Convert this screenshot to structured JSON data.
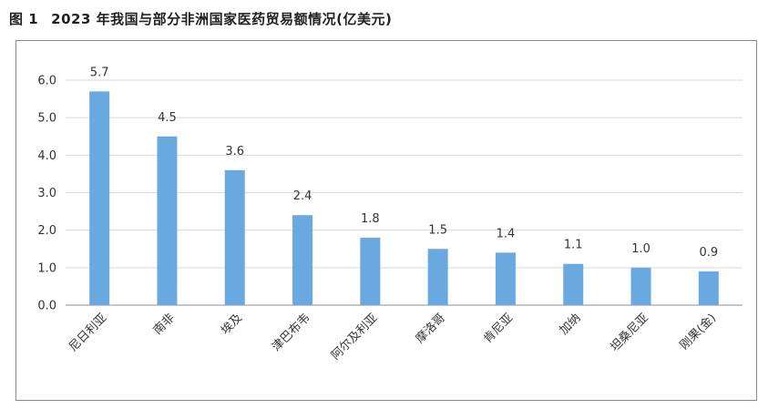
{
  "figure": {
    "number": "图 1",
    "title": "2023 年我国与部分非洲国家医药贸易额情况(亿美元)"
  },
  "chart_data": {
    "type": "bar",
    "title": "2023 年我国与部分非洲国家医药贸易额情况(亿美元)",
    "unit": "亿美元",
    "categories": [
      "尼日利亚",
      "南非",
      "埃及",
      "津巴布韦",
      "阿尔及利亚",
      "摩洛哥",
      "肯尼亚",
      "加纳",
      "坦桑尼亚",
      "刚果(金)"
    ],
    "values": [
      5.7,
      4.5,
      3.6,
      2.4,
      1.8,
      1.5,
      1.4,
      1.1,
      1.0,
      0.9
    ],
    "data_labels": [
      "5.7",
      "4.5",
      "3.6",
      "2.4",
      "1.8",
      "1.5",
      "1.4",
      "1.1",
      "1.0",
      "0.9"
    ],
    "ylim": [
      0,
      6
    ],
    "yticks": [
      0,
      1,
      2,
      3,
      4,
      5,
      6
    ],
    "ytick_labels": [
      "0.0",
      "1.0",
      "2.0",
      "3.0",
      "4.0",
      "5.0",
      "6.0"
    ],
    "grid": true,
    "bar_color": "#6aa9e0",
    "grid_color": "#d9d9d9",
    "axis_color": "#8c8c8c"
  }
}
